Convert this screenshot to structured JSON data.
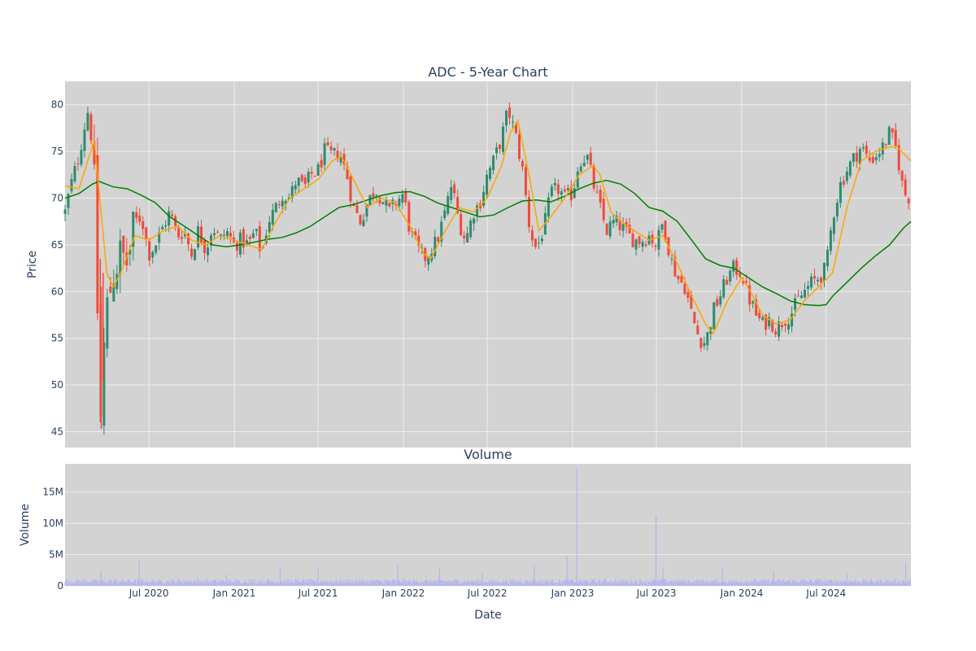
{
  "chart_data": [
    {
      "type": "candlestick",
      "title": "ADC - 5-Year Chart",
      "ylabel": "Price",
      "ylim": [
        43.3,
        82.5
      ],
      "xlim": [
        "2020-01-02",
        "2024-12-31"
      ],
      "y_ticks": [
        45,
        50,
        55,
        60,
        65,
        70,
        75,
        80
      ],
      "plot_background": "#d3d3d3",
      "grid": true,
      "colors": {
        "increasing": "#2e8b6e",
        "decreasing": "#ef4a3b",
        "ma_short": "#ffa500",
        "ma_long": "#008000",
        "grid": "#eeeeee"
      },
      "close_path": [
        [
          "2020-01-02",
          68.5
        ],
        [
          "2020-01-15",
          71.5
        ],
        [
          "2020-02-01",
          74.5
        ],
        [
          "2020-02-12",
          77.5
        ],
        [
          "2020-02-21",
          79.5
        ],
        [
          "2020-03-02",
          75.0
        ],
        [
          "2020-03-09",
          66.0
        ],
        [
          "2020-03-12",
          58.0
        ],
        [
          "2020-03-16",
          49.5
        ],
        [
          "2020-03-19",
          46.5
        ],
        [
          "2020-03-23",
          51.5
        ],
        [
          "2020-03-30",
          57.5
        ],
        [
          "2020-04-15",
          62.0
        ],
        [
          "2020-05-01",
          64.0
        ],
        [
          "2020-05-15",
          63.0
        ],
        [
          "2020-06-01",
          67.5
        ],
        [
          "2020-06-15",
          68.0
        ],
        [
          "2020-07-01",
          64.0
        ],
        [
          "2020-07-15",
          65.0
        ],
        [
          "2020-08-01",
          67.0
        ],
        [
          "2020-08-15",
          68.5
        ],
        [
          "2020-09-01",
          66.0
        ],
        [
          "2020-09-15",
          66.5
        ],
        [
          "2020-10-01",
          64.0
        ],
        [
          "2020-10-15",
          66.5
        ],
        [
          "2020-11-01",
          64.5
        ],
        [
          "2020-11-15",
          67.0
        ],
        [
          "2020-12-01",
          65.5
        ],
        [
          "2020-12-15",
          66.5
        ],
        [
          "2021-01-01",
          65.0
        ],
        [
          "2021-01-15",
          65.5
        ],
        [
          "2021-02-01",
          65.0
        ],
        [
          "2021-02-15",
          66.5
        ],
        [
          "2021-03-01",
          64.0
        ],
        [
          "2021-03-15",
          67.5
        ],
        [
          "2021-04-01",
          69.0
        ],
        [
          "2021-04-15",
          70.5
        ],
        [
          "2021-05-01",
          70.0
        ],
        [
          "2021-05-15",
          72.0
        ],
        [
          "2021-06-01",
          71.0
        ],
        [
          "2021-06-15",
          72.5
        ],
        [
          "2021-07-01",
          73.0
        ],
        [
          "2021-07-15",
          75.0
        ],
        [
          "2021-08-01",
          74.5
        ],
        [
          "2021-08-15",
          75.0
        ],
        [
          "2021-09-01",
          72.5
        ],
        [
          "2021-09-15",
          69.0
        ],
        [
          "2021-10-01",
          67.5
        ],
        [
          "2021-10-15",
          69.5
        ],
        [
          "2021-11-01",
          71.0
        ],
        [
          "2021-11-15",
          70.0
        ],
        [
          "2021-12-01",
          68.5
        ],
        [
          "2021-12-15",
          69.5
        ],
        [
          "2022-01-01",
          70.5
        ],
        [
          "2022-01-15",
          66.5
        ],
        [
          "2022-02-01",
          64.5
        ],
        [
          "2022-02-15",
          63.5
        ],
        [
          "2022-03-01",
          64.5
        ],
        [
          "2022-03-15",
          65.5
        ],
        [
          "2022-04-01",
          68.5
        ],
        [
          "2022-04-15",
          71.5
        ],
        [
          "2022-05-01",
          67.5
        ],
        [
          "2022-05-15",
          65.5
        ],
        [
          "2022-06-01",
          68.5
        ],
        [
          "2022-06-15",
          69.5
        ],
        [
          "2022-07-01",
          72.5
        ],
        [
          "2022-07-15",
          74.0
        ],
        [
          "2022-08-01",
          76.5
        ],
        [
          "2022-08-15",
          79.5
        ],
        [
          "2022-09-01",
          76.5
        ],
        [
          "2022-09-15",
          73.0
        ],
        [
          "2022-10-01",
          66.5
        ],
        [
          "2022-10-15",
          64.5
        ],
        [
          "2022-11-01",
          67.0
        ],
        [
          "2022-11-15",
          70.5
        ],
        [
          "2022-12-01",
          71.0
        ],
        [
          "2022-12-15",
          70.0
        ],
        [
          "2023-01-01",
          70.5
        ],
        [
          "2023-01-15",
          74.0
        ],
        [
          "2023-02-01",
          74.5
        ],
        [
          "2023-02-15",
          71.5
        ],
        [
          "2023-03-01",
          69.0
        ],
        [
          "2023-03-15",
          66.5
        ],
        [
          "2023-04-01",
          67.5
        ],
        [
          "2023-04-15",
          67.0
        ],
        [
          "2023-05-01",
          66.0
        ],
        [
          "2023-05-15",
          65.5
        ],
        [
          "2023-06-01",
          65.5
        ],
        [
          "2023-06-15",
          66.0
        ],
        [
          "2023-07-01",
          65.0
        ],
        [
          "2023-07-15",
          67.5
        ],
        [
          "2023-08-01",
          63.5
        ],
        [
          "2023-08-15",
          61.5
        ],
        [
          "2023-09-01",
          60.5
        ],
        [
          "2023-09-15",
          57.5
        ],
        [
          "2023-10-01",
          55.0
        ],
        [
          "2023-10-15",
          54.5
        ],
        [
          "2023-11-01",
          58.0
        ],
        [
          "2023-11-15",
          59.5
        ],
        [
          "2023-12-01",
          61.5
        ],
        [
          "2023-12-15",
          62.5
        ],
        [
          "2024-01-01",
          62.0
        ],
        [
          "2024-01-15",
          59.5
        ],
        [
          "2024-02-01",
          57.5
        ],
        [
          "2024-02-15",
          56.5
        ],
        [
          "2024-03-01",
          57.0
        ],
        [
          "2024-03-15",
          56.0
        ],
        [
          "2024-04-01",
          57.0
        ],
        [
          "2024-04-15",
          57.5
        ],
        [
          "2024-05-01",
          59.0
        ],
        [
          "2024-05-15",
          60.0
        ],
        [
          "2024-06-01",
          61.0
        ],
        [
          "2024-06-15",
          61.5
        ],
        [
          "2024-07-01",
          62.5
        ],
        [
          "2024-07-15",
          68.0
        ],
        [
          "2024-08-01",
          71.5
        ],
        [
          "2024-08-15",
          73.0
        ],
        [
          "2024-09-01",
          74.5
        ],
        [
          "2024-09-15",
          75.5
        ],
        [
          "2024-10-01",
          74.0
        ],
        [
          "2024-10-15",
          74.5
        ],
        [
          "2024-11-01",
          75.5
        ],
        [
          "2024-11-15",
          77.0
        ],
        [
          "2024-12-01",
          75.0
        ],
        [
          "2024-12-10",
          72.0
        ],
        [
          "2024-12-16",
          70.5
        ],
        [
          "2024-12-31",
          70.0
        ]
      ],
      "ma_short": [
        [
          "2020-01-02",
          71.3
        ],
        [
          "2020-02-01",
          71.0
        ],
        [
          "2020-02-20",
          74.0
        ],
        [
          "2020-03-05",
          76.2
        ],
        [
          "2020-03-15",
          71.0
        ],
        [
          "2020-04-01",
          62.0
        ],
        [
          "2020-04-15",
          60.5
        ],
        [
          "2020-05-01",
          62.0
        ],
        [
          "2020-06-01",
          66.0
        ],
        [
          "2020-07-01",
          65.5
        ],
        [
          "2020-08-01",
          66.5
        ],
        [
          "2020-09-01",
          67.0
        ],
        [
          "2020-10-01",
          65.5
        ],
        [
          "2020-11-01",
          65.0
        ],
        [
          "2020-12-01",
          66.0
        ],
        [
          "2021-01-01",
          65.5
        ],
        [
          "2021-02-01",
          65.0
        ],
        [
          "2021-03-01",
          64.5
        ],
        [
          "2021-04-01",
          67.5
        ],
        [
          "2021-05-01",
          70.0
        ],
        [
          "2021-06-01",
          71.0
        ],
        [
          "2021-07-01",
          72.0
        ],
        [
          "2021-08-01",
          74.0
        ],
        [
          "2021-08-20",
          74.5
        ],
        [
          "2021-09-15",
          72.0
        ],
        [
          "2021-10-15",
          69.0
        ],
        [
          "2021-11-15",
          70.0
        ],
        [
          "2021-12-15",
          69.5
        ],
        [
          "2022-01-15",
          67.0
        ],
        [
          "2022-02-15",
          64.0
        ],
        [
          "2022-03-01",
          63.5
        ],
        [
          "2022-04-01",
          66.5
        ],
        [
          "2022-05-01",
          69.0
        ],
        [
          "2022-06-01",
          68.5
        ],
        [
          "2022-07-01",
          70.0
        ],
        [
          "2022-08-01",
          73.5
        ],
        [
          "2022-08-20",
          77.0
        ],
        [
          "2022-09-05",
          78.3
        ],
        [
          "2022-10-01",
          72.0
        ],
        [
          "2022-10-20",
          66.5
        ],
        [
          "2022-11-15",
          68.0
        ],
        [
          "2022-12-15",
          70.0
        ],
        [
          "2023-01-15",
          72.5
        ],
        [
          "2023-02-15",
          73.5
        ],
        [
          "2023-03-01",
          72.5
        ],
        [
          "2023-03-25",
          68.5
        ],
        [
          "2023-04-15",
          67.5
        ],
        [
          "2023-05-15",
          66.5
        ],
        [
          "2023-06-15",
          65.5
        ],
        [
          "2023-07-15",
          66.0
        ],
        [
          "2023-08-15",
          63.0
        ],
        [
          "2023-09-15",
          59.5
        ],
        [
          "2023-10-15",
          56.5
        ],
        [
          "2023-11-01",
          55.5
        ],
        [
          "2023-12-01",
          59.0
        ],
        [
          "2024-01-01",
          61.5
        ],
        [
          "2024-01-20",
          60.0
        ],
        [
          "2024-02-15",
          57.5
        ],
        [
          "2024-03-15",
          56.5
        ],
        [
          "2024-04-15",
          57.0
        ],
        [
          "2024-05-15",
          59.0
        ],
        [
          "2024-06-15",
          60.5
        ],
        [
          "2024-07-15",
          62.0
        ],
        [
          "2024-08-15",
          69.0
        ],
        [
          "2024-09-15",
          74.0
        ],
        [
          "2024-10-15",
          75.0
        ],
        [
          "2024-11-15",
          75.5
        ],
        [
          "2024-12-01",
          75.5
        ],
        [
          "2024-12-31",
          74.0
        ]
      ],
      "ma_long": [
        [
          "2020-01-02",
          70.0
        ],
        [
          "2020-02-01",
          70.5
        ],
        [
          "2020-03-01",
          71.5
        ],
        [
          "2020-03-15",
          71.8
        ],
        [
          "2020-04-15",
          71.2
        ],
        [
          "2020-05-15",
          71.0
        ],
        [
          "2020-06-15",
          70.3
        ],
        [
          "2020-07-15",
          69.5
        ],
        [
          "2020-08-15",
          68.0
        ],
        [
          "2020-09-15",
          67.0
        ],
        [
          "2020-10-15",
          66.0
        ],
        [
          "2020-11-15",
          65.0
        ],
        [
          "2020-12-15",
          64.8
        ],
        [
          "2021-01-15",
          65.0
        ],
        [
          "2021-02-15",
          65.3
        ],
        [
          "2021-03-15",
          65.6
        ],
        [
          "2021-04-15",
          65.8
        ],
        [
          "2021-05-15",
          66.3
        ],
        [
          "2021-06-15",
          67.0
        ],
        [
          "2021-07-15",
          68.0
        ],
        [
          "2021-08-15",
          69.0
        ],
        [
          "2021-09-15",
          69.3
        ],
        [
          "2021-10-15",
          69.8
        ],
        [
          "2021-11-15",
          70.3
        ],
        [
          "2021-12-15",
          70.6
        ],
        [
          "2022-01-15",
          70.7
        ],
        [
          "2022-02-15",
          70.2
        ],
        [
          "2022-03-15",
          69.5
        ],
        [
          "2022-04-15",
          69.0
        ],
        [
          "2022-05-15",
          68.5
        ],
        [
          "2022-06-15",
          68.0
        ],
        [
          "2022-07-15",
          68.2
        ],
        [
          "2022-08-15",
          69.0
        ],
        [
          "2022-09-15",
          69.7
        ],
        [
          "2022-10-15",
          69.8
        ],
        [
          "2022-11-15",
          69.6
        ],
        [
          "2022-12-15",
          70.2
        ],
        [
          "2023-01-15",
          71.0
        ],
        [
          "2023-02-15",
          71.6
        ],
        [
          "2023-03-15",
          71.9
        ],
        [
          "2023-04-15",
          71.5
        ],
        [
          "2023-05-15",
          70.5
        ],
        [
          "2023-06-15",
          69.0
        ],
        [
          "2023-07-15",
          68.6
        ],
        [
          "2023-08-15",
          67.5
        ],
        [
          "2023-09-15",
          65.5
        ],
        [
          "2023-10-15",
          63.5
        ],
        [
          "2023-11-15",
          62.8
        ],
        [
          "2023-12-15",
          62.5
        ],
        [
          "2024-01-15",
          61.5
        ],
        [
          "2024-02-15",
          60.5
        ],
        [
          "2024-03-15",
          59.8
        ],
        [
          "2024-04-15",
          59.0
        ],
        [
          "2024-05-15",
          58.6
        ],
        [
          "2024-06-15",
          58.5
        ],
        [
          "2024-07-01",
          58.6
        ],
        [
          "2024-07-15",
          59.5
        ],
        [
          "2024-08-15",
          61.0
        ],
        [
          "2024-09-15",
          62.5
        ],
        [
          "2024-10-15",
          63.8
        ],
        [
          "2024-11-15",
          65.0
        ],
        [
          "2024-12-15",
          66.8
        ],
        [
          "2024-12-31",
          67.5
        ]
      ]
    },
    {
      "type": "bar",
      "title": "Volume",
      "xlabel": "Date",
      "ylabel": "Volume",
      "ylim": [
        0,
        19500000
      ],
      "y_ticks": [
        {
          "value": 0,
          "label": "0"
        },
        {
          "value": 5000000,
          "label": "5M"
        },
        {
          "value": 10000000,
          "label": "10M"
        },
        {
          "value": 15000000,
          "label": "15M"
        }
      ],
      "x_ticks": [
        {
          "date": "2020-07-01",
          "label": "Jul 2020"
        },
        {
          "date": "2021-01-01",
          "label": "Jan 2021"
        },
        {
          "date": "2021-07-01",
          "label": "Jul 2021"
        },
        {
          "date": "2022-01-01",
          "label": "Jan 2022"
        },
        {
          "date": "2022-07-01",
          "label": "Jul 2022"
        },
        {
          "date": "2023-01-01",
          "label": "Jan 2023"
        },
        {
          "date": "2023-07-01",
          "label": "Jul 2023"
        },
        {
          "date": "2024-01-01",
          "label": "Jan 2024"
        },
        {
          "date": "2024-07-01",
          "label": "Jul 2024"
        }
      ],
      "bar_color": "#b3b3f0",
      "baseline_volume": 800000,
      "spikes": [
        [
          "2020-03-20",
          2500000
        ],
        [
          "2020-06-10",
          4000000
        ],
        [
          "2020-12-15",
          1800000
        ],
        [
          "2021-04-10",
          3000000
        ],
        [
          "2021-07-01",
          2800000
        ],
        [
          "2021-12-20",
          3300000
        ],
        [
          "2022-03-20",
          2800000
        ],
        [
          "2022-06-20",
          2000000
        ],
        [
          "2022-10-10",
          3100000
        ],
        [
          "2022-12-20",
          4800000
        ],
        [
          "2023-01-10",
          18800000
        ],
        [
          "2023-06-30",
          11300000
        ],
        [
          "2023-07-15",
          3000000
        ],
        [
          "2023-11-20",
          2900000
        ],
        [
          "2024-03-10",
          2400000
        ],
        [
          "2024-08-15",
          2100000
        ],
        [
          "2024-12-20",
          3800000
        ]
      ]
    }
  ]
}
